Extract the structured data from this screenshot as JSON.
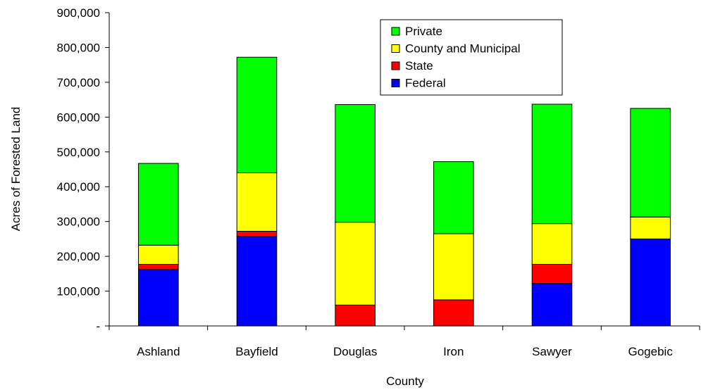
{
  "chart_data": {
    "type": "bar",
    "stacked": true,
    "xlabel": "County",
    "ylabel": "Acres of Forested Land",
    "ylim": [
      0,
      900000
    ],
    "yticks": [
      {
        "value": 0,
        "label": "-"
      },
      {
        "value": 100000,
        "label": "100,000"
      },
      {
        "value": 200000,
        "label": "200,000"
      },
      {
        "value": 300000,
        "label": "300,000"
      },
      {
        "value": 400000,
        "label": "400,000"
      },
      {
        "value": 500000,
        "label": "500,000"
      },
      {
        "value": 600000,
        "label": "600,000"
      },
      {
        "value": 700000,
        "label": "700,000"
      },
      {
        "value": 800000,
        "label": "800,000"
      },
      {
        "value": 900000,
        "label": "900,000"
      }
    ],
    "categories": [
      "Ashland",
      "Bayfield",
      "Douglas",
      "Iron",
      "Sawyer",
      "Gogebic"
    ],
    "series": [
      {
        "name": "Federal",
        "color": "#0000ff",
        "values": [
          162000,
          257000,
          0,
          0,
          122000,
          250000
        ]
      },
      {
        "name": "State",
        "color": "#ff0000",
        "values": [
          15000,
          15000,
          60000,
          75000,
          55000,
          0
        ]
      },
      {
        "name": "County and Municipal",
        "color": "#ffff00",
        "values": [
          55000,
          168000,
          238000,
          190000,
          117000,
          63000
        ]
      },
      {
        "name": "Private",
        "color": "#00ff00",
        "values": [
          235000,
          332000,
          338000,
          207000,
          343000,
          312000
        ]
      }
    ],
    "legend": {
      "placement": "top-center",
      "order": [
        "Private",
        "County and Municipal",
        "State",
        "Federal"
      ]
    },
    "grid": false
  }
}
